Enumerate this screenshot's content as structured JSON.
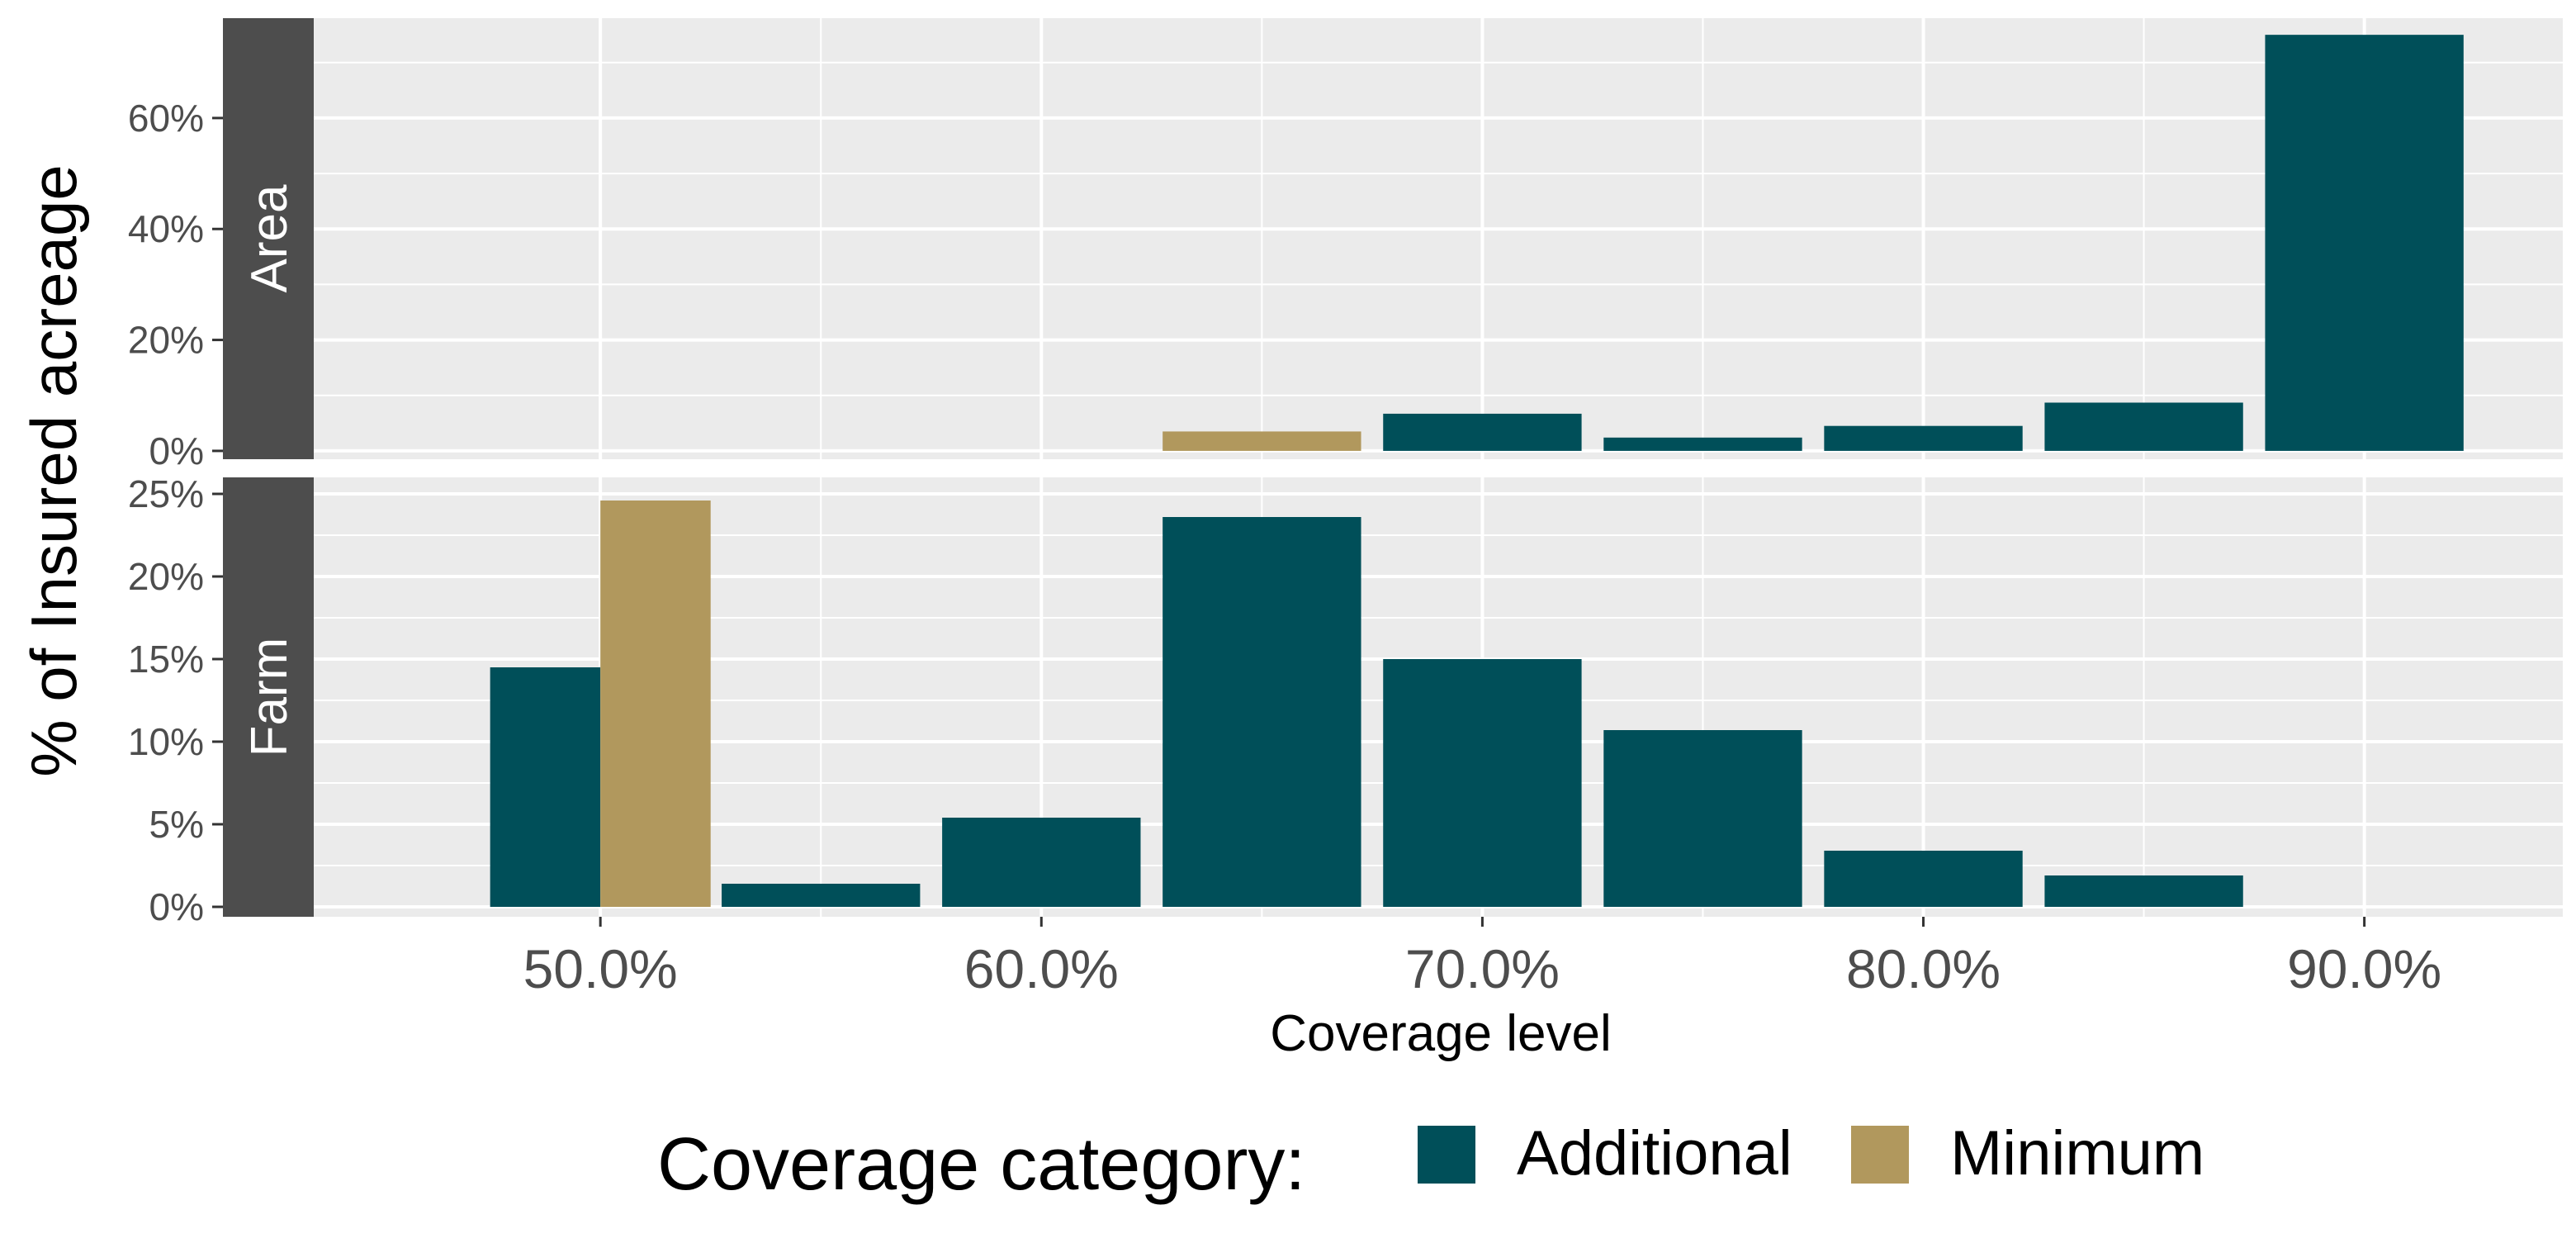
{
  "chart_data": {
    "type": "bar",
    "ylabel": "% of Insured acreage",
    "xlabel": "Coverage level",
    "x_ticks": [
      "50.0%",
      "60.0%",
      "70.0%",
      "80.0%",
      "90.0%"
    ],
    "x_tick_values": [
      50,
      60,
      70,
      80,
      90
    ],
    "xlim": [
      43.5,
      94.5
    ],
    "grid": true,
    "legend": {
      "position": "bottom",
      "title": "Coverage category:",
      "entries": [
        {
          "name": "Additional",
          "color": "#004f59"
        },
        {
          "name": "Minimum",
          "color": "#b1985d"
        }
      ]
    },
    "panels": [
      {
        "strip": "Area",
        "ylim": [
          -1.5,
          78
        ],
        "y_ticks": [
          0,
          20,
          40,
          60
        ],
        "y_tick_labels": [
          "0%",
          "20%",
          "40%",
          "60%"
        ],
        "bars": [
          {
            "x": 65,
            "value": 3.5,
            "series": "Minimum"
          },
          {
            "x": 70,
            "value": 6.7,
            "series": "Additional"
          },
          {
            "x": 75,
            "value": 2.4,
            "series": "Additional"
          },
          {
            "x": 80,
            "value": 4.5,
            "series": "Additional"
          },
          {
            "x": 85,
            "value": 8.7,
            "series": "Additional"
          },
          {
            "x": 90,
            "value": 75.0,
            "series": "Additional"
          }
        ]
      },
      {
        "strip": "Farm",
        "ylim": [
          -0.6,
          26.0
        ],
        "y_ticks": [
          0,
          5,
          10,
          15,
          20,
          25
        ],
        "y_tick_labels": [
          "0%",
          "5%",
          "10%",
          "15%",
          "20%",
          "25%"
        ],
        "bars": [
          {
            "x": 48.75,
            "value": 14.5,
            "series": "Additional",
            "width": 2.5
          },
          {
            "x": 51.25,
            "value": 24.6,
            "series": "Minimum",
            "width": 2.5
          },
          {
            "x": 55,
            "value": 1.4,
            "series": "Additional"
          },
          {
            "x": 60,
            "value": 5.4,
            "series": "Additional"
          },
          {
            "x": 65,
            "value": 23.6,
            "series": "Additional"
          },
          {
            "x": 70,
            "value": 15.0,
            "series": "Additional"
          },
          {
            "x": 75,
            "value": 10.7,
            "series": "Additional"
          },
          {
            "x": 80,
            "value": 3.4,
            "series": "Additional"
          },
          {
            "x": 85,
            "value": 1.9,
            "series": "Additional"
          }
        ]
      }
    ]
  }
}
